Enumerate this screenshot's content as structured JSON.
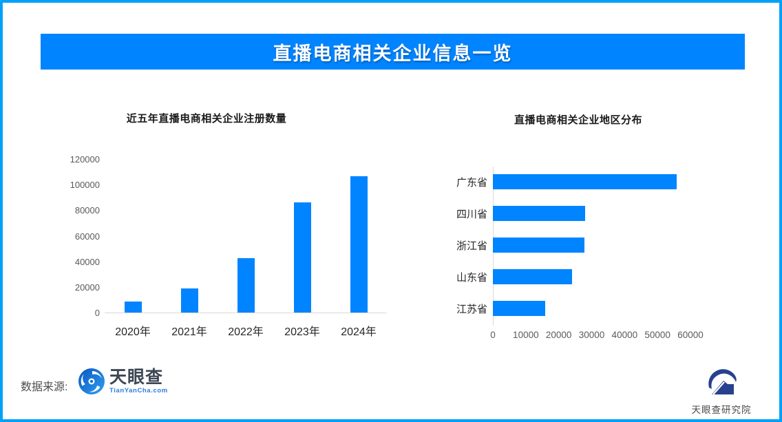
{
  "header": {
    "title": "直播电商相关企业信息一览"
  },
  "chart_data": [
    {
      "type": "bar",
      "orientation": "vertical",
      "title": "近五年直播电商相关企业注册数量",
      "categories": [
        "2020年",
        "2021年",
        "2022年",
        "2023年",
        "2024年"
      ],
      "values": [
        8400,
        19000,
        42600,
        86300,
        106300
      ],
      "xlabel": "",
      "ylabel": "",
      "ylim": [
        0,
        120000
      ],
      "yticks": [
        0,
        20000,
        40000,
        60000,
        80000,
        100000,
        120000
      ],
      "grid": false,
      "legend": false,
      "bar_color": "#0084ff"
    },
    {
      "type": "bar",
      "orientation": "horizontal",
      "title": "直播电商相关企业地区分布",
      "categories": [
        "广东省",
        "四川省",
        "浙江省",
        "山东省",
        "江苏省"
      ],
      "values": [
        55800,
        28000,
        27800,
        24000,
        15900
      ],
      "xlabel": "",
      "ylabel": "",
      "xlim": [
        0,
        60000
      ],
      "xticks": [
        0,
        10000,
        20000,
        30000,
        40000,
        50000,
        60000
      ],
      "grid": false,
      "legend": false,
      "bar_color": "#0084ff"
    }
  ],
  "footer": {
    "source_label": "数据来源:",
    "tyc_logo_name": "天眼查",
    "tyc_logo_sub": "TianYanCha.com",
    "institute_name": "天眼查研究院"
  },
  "colors": {
    "accent_blue": "#0084ff",
    "frame_blue": "#02a1f8",
    "axis_gray": "#d9d9d9",
    "tick_text": "#595959",
    "label_text": "#262626",
    "tyc_navy": "#27418f"
  }
}
